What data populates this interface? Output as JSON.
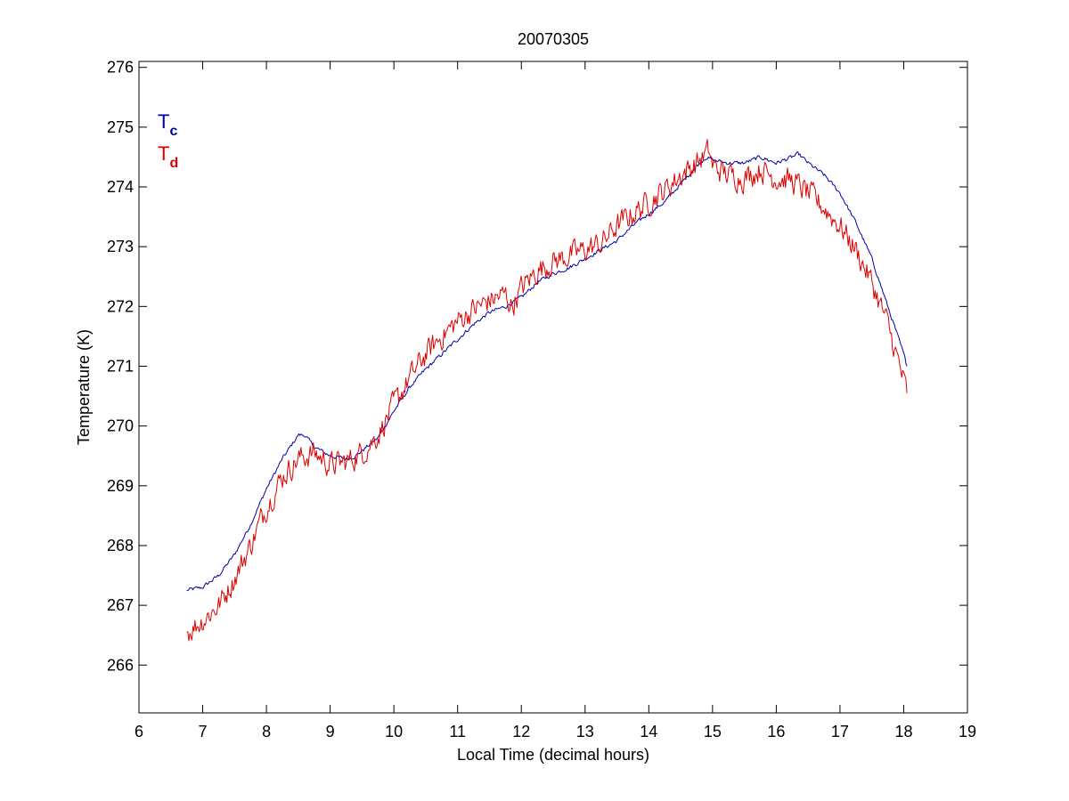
{
  "chart_data": {
    "type": "line",
    "title": "20070305",
    "xlabel": "Local Time (decimal hours)",
    "ylabel": "Temperature (K)",
    "xlim": [
      6,
      19
    ],
    "ylim": [
      265.2,
      276.1
    ],
    "xticks": [
      6,
      7,
      8,
      9,
      10,
      11,
      12,
      13,
      14,
      15,
      16,
      17,
      18,
      19
    ],
    "yticks": [
      266,
      267,
      268,
      269,
      270,
      271,
      272,
      273,
      274,
      275,
      276
    ],
    "grid": false,
    "legend_position": "top-left",
    "series": [
      {
        "name": "T",
        "subscript": "c",
        "color": "#0000aa",
        "noise": 0.03,
        "x": [
          6.75,
          7.0,
          7.25,
          7.5,
          7.75,
          8.0,
          8.25,
          8.5,
          8.6,
          8.75,
          9.0,
          9.25,
          9.4,
          9.75,
          10.0,
          10.25,
          10.5,
          10.75,
          11.0,
          11.25,
          11.5,
          11.75,
          12.0,
          12.25,
          12.5,
          12.75,
          13.0,
          13.25,
          13.5,
          13.75,
          14.0,
          14.25,
          14.5,
          14.75,
          14.9,
          15.0,
          15.25,
          15.5,
          15.75,
          16.0,
          16.25,
          16.35,
          16.5,
          16.75,
          17.0,
          17.25,
          17.5,
          17.75,
          18.0,
          18.05
        ],
        "values": [
          267.25,
          267.3,
          267.5,
          267.85,
          268.35,
          268.95,
          269.45,
          269.85,
          269.85,
          269.65,
          269.5,
          269.45,
          269.5,
          269.8,
          270.25,
          270.65,
          270.95,
          271.2,
          271.45,
          271.7,
          271.9,
          272.0,
          272.15,
          272.4,
          272.55,
          272.65,
          272.8,
          272.95,
          273.1,
          273.35,
          273.55,
          273.75,
          274.05,
          274.35,
          274.5,
          274.45,
          274.4,
          274.4,
          274.5,
          274.4,
          274.5,
          274.55,
          274.4,
          274.2,
          273.9,
          273.4,
          272.8,
          272.0,
          271.2,
          271.0
        ]
      },
      {
        "name": "T",
        "subscript": "d",
        "color": "#dd0000",
        "noise": 0.18,
        "x": [
          6.75,
          7.0,
          7.25,
          7.5,
          7.75,
          8.0,
          8.25,
          8.5,
          8.75,
          9.0,
          9.25,
          9.5,
          9.75,
          10.0,
          10.25,
          10.5,
          10.75,
          11.0,
          11.25,
          11.5,
          11.75,
          11.85,
          12.0,
          12.25,
          12.5,
          12.75,
          13.0,
          13.25,
          13.5,
          13.75,
          14.0,
          14.25,
          14.5,
          14.75,
          14.95,
          15.0,
          15.25,
          15.5,
          15.75,
          16.0,
          16.25,
          16.5,
          16.75,
          17.0,
          17.25,
          17.5,
          17.75,
          18.0,
          18.05
        ],
        "values": [
          266.55,
          266.75,
          267.0,
          267.45,
          268.0,
          268.65,
          269.15,
          269.45,
          269.55,
          269.35,
          269.4,
          269.55,
          269.85,
          270.35,
          270.8,
          271.2,
          271.5,
          271.75,
          271.95,
          272.1,
          272.2,
          272.0,
          272.3,
          272.6,
          272.75,
          272.85,
          272.95,
          273.05,
          273.35,
          273.55,
          273.75,
          273.95,
          274.2,
          274.4,
          274.6,
          274.35,
          274.2,
          274.15,
          274.3,
          274.15,
          274.1,
          273.9,
          273.65,
          273.35,
          272.95,
          272.4,
          271.7,
          270.75,
          270.55
        ]
      }
    ]
  }
}
